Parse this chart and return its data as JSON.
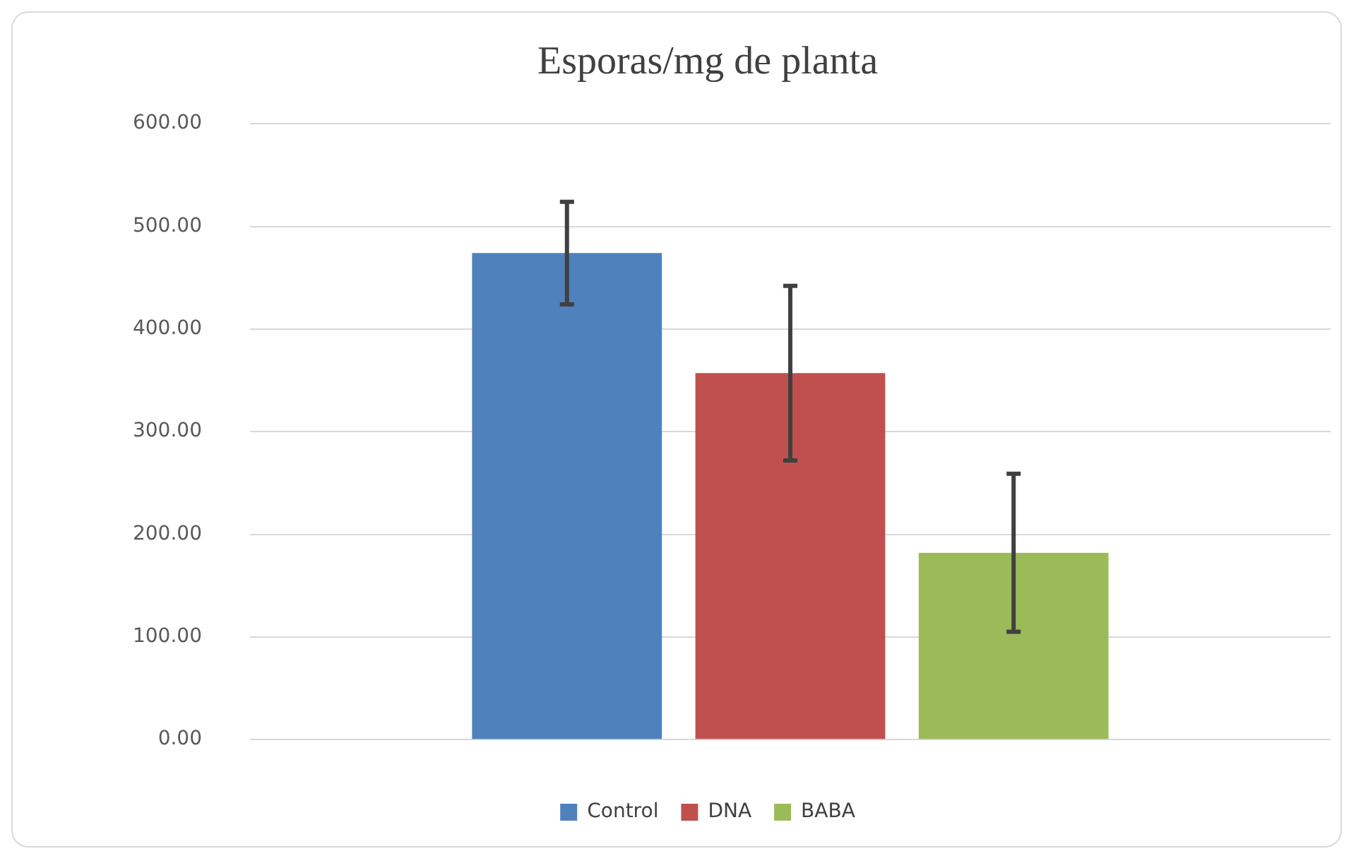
{
  "chart_data": {
    "type": "bar",
    "title": "Esporas/mg de planta",
    "categories": [
      null
    ],
    "series": [
      {
        "name": "Control",
        "color": "#4f81bd",
        "values": [
          474
        ],
        "errors": [
          50
        ]
      },
      {
        "name": "DNA",
        "color": "#c0504d",
        "values": [
          357
        ],
        "errors": [
          85
        ]
      },
      {
        "name": "BABA",
        "color": "#9bbb59",
        "values": [
          182
        ],
        "errors": [
          77
        ]
      }
    ],
    "ylim": [
      0,
      600
    ],
    "yticks": [
      {
        "value": 0,
        "label": "0.00"
      },
      {
        "value": 100,
        "label": "100.00"
      },
      {
        "value": 200,
        "label": "200.00"
      },
      {
        "value": 300,
        "label": "300.00"
      },
      {
        "value": 400,
        "label": "400.00"
      },
      {
        "value": 500,
        "label": "500.00"
      },
      {
        "value": 600,
        "label": "600.00"
      }
    ],
    "grid": "y",
    "legend": "bottom"
  }
}
